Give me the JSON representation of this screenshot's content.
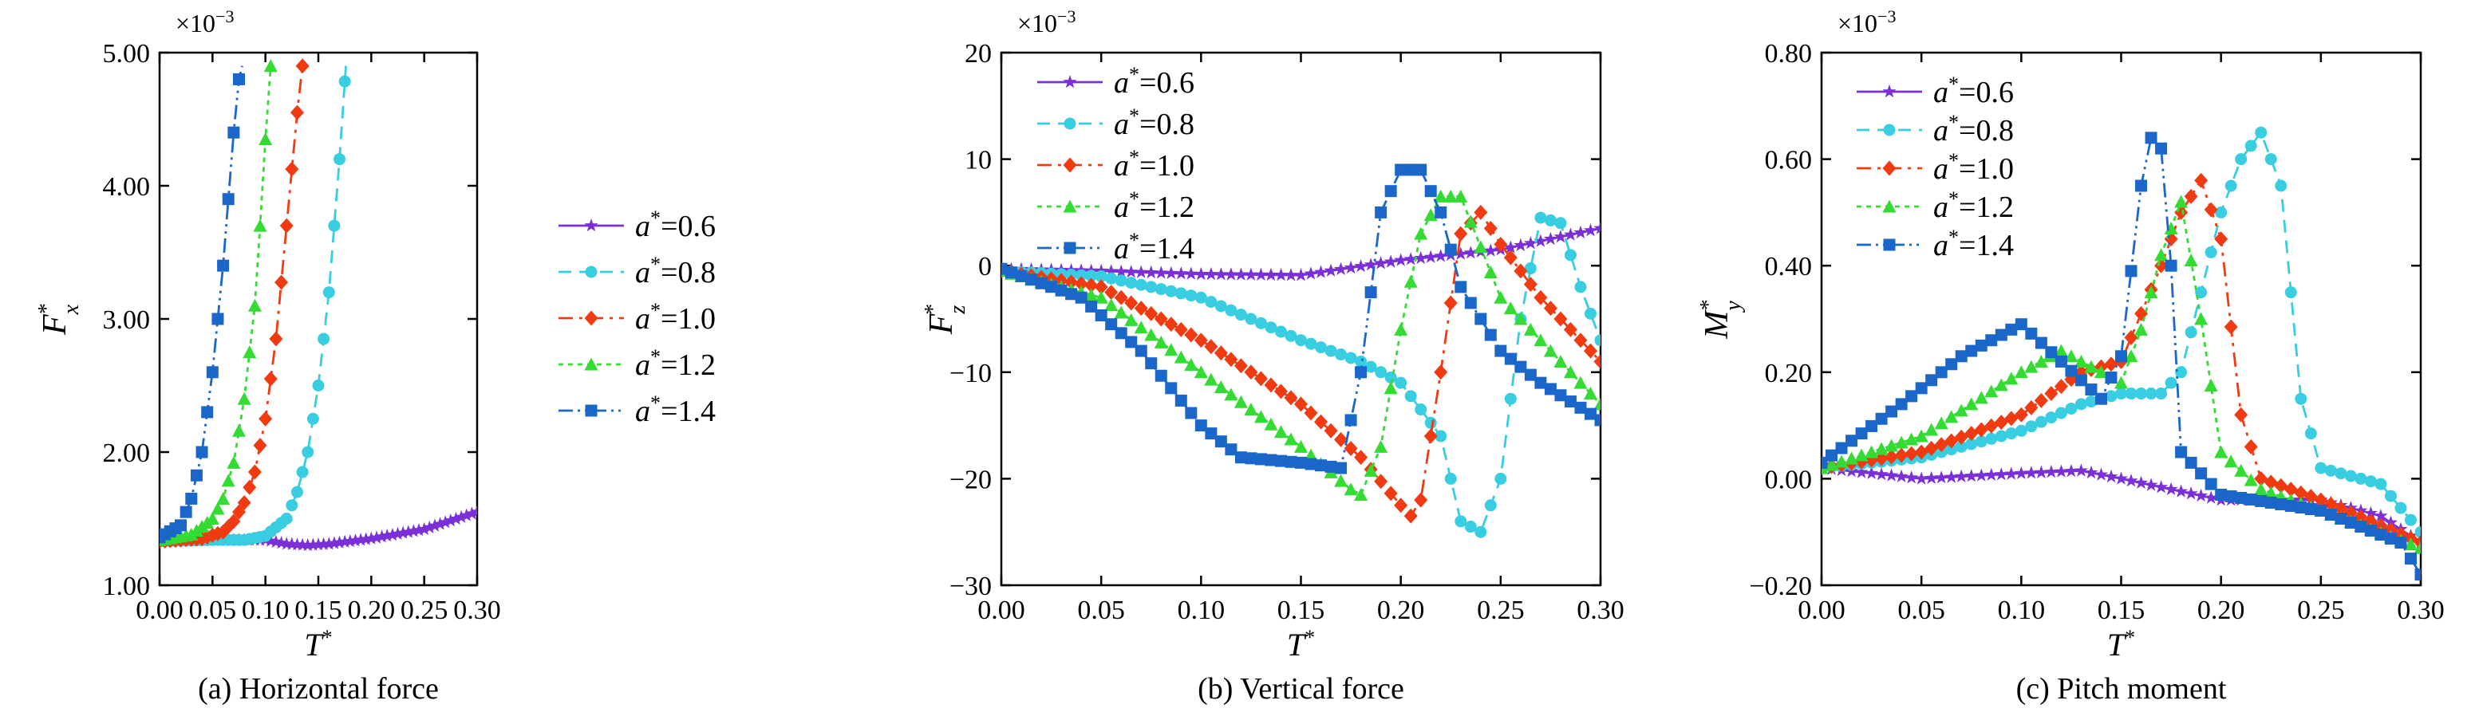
{
  "figure": {
    "subtitle_prefix": "×10",
    "subtitle_exponent": "−3",
    "legend_prefix": "a",
    "xlabel_main": "T",
    "xlabel_sup": "*"
  },
  "colors": {
    "a06": "#7B2FD6",
    "a08": "#38CDE0",
    "a10": "#F03B12",
    "a12": "#33DB33",
    "a14": "#1A66C9"
  },
  "chart_data": [
    {
      "type": "line",
      "caption": "(a) Horizontal force",
      "ylabel_main": "F",
      "ylabel_sub": "x",
      "ylabel_sup": "*",
      "multiplier": "×10−3",
      "xlim": [
        0,
        0.3
      ],
      "ylim": [
        1.0,
        5.0
      ],
      "xticks": [
        "0.00",
        "0.05",
        "0.10",
        "0.15",
        "0.20",
        "0.25",
        "0.30"
      ],
      "yticks": [
        "1.00",
        "2.00",
        "3.00",
        "4.00",
        "5.00"
      ],
      "legend_position": "center-right",
      "series": [
        {
          "name": "0.6",
          "marker": "star",
          "color_key": "a06",
          "x": [
            0.0,
            0.05,
            0.1,
            0.12,
            0.14,
            0.16,
            0.2,
            0.25,
            0.3
          ],
          "y": [
            1.33,
            1.34,
            1.34,
            1.31,
            1.3,
            1.31,
            1.35,
            1.42,
            1.55
          ]
        },
        {
          "name": "0.8",
          "marker": "circle",
          "color_key": "a08",
          "x": [
            0.0,
            0.05,
            0.08,
            0.1,
            0.12,
            0.13,
            0.14,
            0.15,
            0.16,
            0.17,
            0.176
          ],
          "y": [
            1.33,
            1.34,
            1.34,
            1.37,
            1.5,
            1.7,
            2.0,
            2.5,
            3.2,
            4.2,
            4.9
          ]
        },
        {
          "name": "1.0",
          "marker": "diamond",
          "color_key": "a10",
          "x": [
            0.0,
            0.04,
            0.06,
            0.07,
            0.08,
            0.09,
            0.1,
            0.11,
            0.12,
            0.13,
            0.135
          ],
          "y": [
            1.33,
            1.35,
            1.4,
            1.48,
            1.62,
            1.85,
            2.25,
            2.85,
            3.7,
            4.55,
            4.9
          ]
        },
        {
          "name": "1.2",
          "marker": "triangle",
          "color_key": "a12",
          "x": [
            0.0,
            0.03,
            0.05,
            0.06,
            0.07,
            0.08,
            0.09,
            0.095,
            0.1,
            0.105
          ],
          "y": [
            1.34,
            1.38,
            1.5,
            1.65,
            1.92,
            2.4,
            3.1,
            3.7,
            4.35,
            4.9
          ]
        },
        {
          "name": "1.4",
          "marker": "square",
          "color_key": "a14",
          "x": [
            0.0,
            0.02,
            0.03,
            0.04,
            0.05,
            0.06,
            0.065,
            0.07,
            0.075,
            0.078
          ],
          "y": [
            1.36,
            1.45,
            1.65,
            2.0,
            2.6,
            3.4,
            3.9,
            4.4,
            4.8,
            4.9
          ]
        }
      ]
    },
    {
      "type": "line",
      "caption": "(b) Vertical force",
      "ylabel_main": "F",
      "ylabel_sub": "z",
      "ylabel_sup": "*",
      "multiplier": "×10−3",
      "xlim": [
        0,
        0.3
      ],
      "ylim": [
        -30,
        20
      ],
      "xticks": [
        "0.00",
        "0.05",
        "0.10",
        "0.15",
        "0.20",
        "0.25",
        "0.30"
      ],
      "yticks": [
        "−30",
        "−20",
        "−10",
        "0",
        "10",
        "20"
      ],
      "legend_position": "top-left",
      "series": [
        {
          "name": "0.6",
          "marker": "star",
          "color_key": "a06",
          "x": [
            0.0,
            0.05,
            0.1,
            0.15,
            0.2,
            0.25,
            0.3
          ],
          "y": [
            -0.3,
            -0.5,
            -0.8,
            -0.9,
            0.5,
            1.5,
            3.5
          ]
        },
        {
          "name": "0.8",
          "marker": "circle",
          "color_key": "a08",
          "x": [
            0.0,
            0.05,
            0.1,
            0.15,
            0.18,
            0.2,
            0.22,
            0.23,
            0.24,
            0.25,
            0.26,
            0.27,
            0.28,
            0.29,
            0.3
          ],
          "y": [
            -0.5,
            -1.0,
            -3.0,
            -7.0,
            -9.0,
            -11.0,
            -16.0,
            -24.0,
            -25.0,
            -20.0,
            -5.0,
            4.5,
            4.0,
            -2.0,
            -7.0
          ]
        },
        {
          "name": "1.0",
          "marker": "diamond",
          "color_key": "a10",
          "x": [
            0.0,
            0.05,
            0.1,
            0.15,
            0.18,
            0.2,
            0.205,
            0.21,
            0.22,
            0.23,
            0.24,
            0.25,
            0.27,
            0.3
          ],
          "y": [
            -0.5,
            -2.0,
            -7.0,
            -13.0,
            -18.0,
            -22.5,
            -23.5,
            -22.0,
            -10.0,
            3.0,
            5.0,
            2.0,
            -3.0,
            -9.0
          ]
        },
        {
          "name": "1.2",
          "marker": "triangle",
          "color_key": "a12",
          "x": [
            0.0,
            0.05,
            0.1,
            0.15,
            0.175,
            0.18,
            0.19,
            0.2,
            0.21,
            0.22,
            0.23,
            0.25,
            0.27,
            0.3
          ],
          "y": [
            -0.5,
            -3.0,
            -10.0,
            -17.0,
            -21.0,
            -21.5,
            -17.0,
            -6.0,
            3.0,
            6.5,
            6.5,
            -3.0,
            -7.0,
            -13.0
          ]
        },
        {
          "name": "1.4",
          "marker": "square",
          "color_key": "a14",
          "x": [
            0.0,
            0.04,
            0.07,
            0.1,
            0.12,
            0.15,
            0.17,
            0.18,
            0.19,
            0.2,
            0.21,
            0.22,
            0.23,
            0.25,
            0.27,
            0.3
          ],
          "y": [
            -0.3,
            -3.0,
            -8.0,
            -15.0,
            -18.0,
            -18.5,
            -19.0,
            -10.0,
            5.0,
            9.0,
            9.0,
            5.0,
            -2.0,
            -8.0,
            -11.0,
            -14.5
          ]
        }
      ]
    },
    {
      "type": "line",
      "caption": "(c) Pitch moment",
      "ylabel_main": "M",
      "ylabel_sub": "y",
      "ylabel_sup": "*",
      "multiplier": "×10−3",
      "xlim": [
        0,
        0.3
      ],
      "ylim": [
        -0.2,
        0.8
      ],
      "xticks": [
        "0.00",
        "0.05",
        "0.10",
        "0.15",
        "0.20",
        "0.25",
        "0.30"
      ],
      "yticks": [
        "−0.20",
        "0.00",
        "0.20",
        "0.40",
        "0.60",
        "0.80"
      ],
      "legend_position": "top-left",
      "series": [
        {
          "name": "0.6",
          "marker": "star",
          "color_key": "a06",
          "x": [
            0.0,
            0.05,
            0.1,
            0.13,
            0.15,
            0.2,
            0.25,
            0.28,
            0.3
          ],
          "y": [
            0.02,
            0.0,
            0.01,
            0.015,
            0.0,
            -0.04,
            -0.04,
            -0.07,
            -0.12
          ]
        },
        {
          "name": "0.8",
          "marker": "circle",
          "color_key": "a08",
          "x": [
            0.0,
            0.05,
            0.1,
            0.13,
            0.15,
            0.17,
            0.18,
            0.2,
            0.21,
            0.22,
            0.23,
            0.24,
            0.25,
            0.28,
            0.3
          ],
          "y": [
            0.02,
            0.04,
            0.09,
            0.14,
            0.16,
            0.16,
            0.2,
            0.5,
            0.6,
            0.65,
            0.55,
            0.15,
            0.02,
            -0.01,
            -0.1
          ]
        },
        {
          "name": "1.0",
          "marker": "diamond",
          "color_key": "a10",
          "x": [
            0.0,
            0.05,
            0.1,
            0.13,
            0.15,
            0.17,
            0.18,
            0.19,
            0.2,
            0.21,
            0.22,
            0.25,
            0.3
          ],
          "y": [
            0.02,
            0.05,
            0.12,
            0.2,
            0.22,
            0.4,
            0.5,
            0.56,
            0.45,
            0.12,
            0.0,
            -0.04,
            -0.12
          ]
        },
        {
          "name": "1.2",
          "marker": "triangle",
          "color_key": "a12",
          "x": [
            0.0,
            0.05,
            0.1,
            0.12,
            0.15,
            0.16,
            0.17,
            0.18,
            0.19,
            0.2,
            0.22,
            0.25,
            0.3
          ],
          "y": [
            0.02,
            0.08,
            0.2,
            0.24,
            0.18,
            0.28,
            0.42,
            0.52,
            0.3,
            0.05,
            -0.02,
            -0.06,
            -0.13
          ]
        },
        {
          "name": "1.4",
          "marker": "square",
          "color_key": "a14",
          "x": [
            0.0,
            0.04,
            0.07,
            0.1,
            0.12,
            0.14,
            0.15,
            0.16,
            0.165,
            0.17,
            0.175,
            0.18,
            0.2,
            0.25,
            0.29,
            0.3
          ],
          "y": [
            0.03,
            0.14,
            0.23,
            0.29,
            0.22,
            0.15,
            0.23,
            0.55,
            0.64,
            0.62,
            0.4,
            0.05,
            -0.03,
            -0.06,
            -0.12,
            -0.18
          ]
        }
      ]
    }
  ]
}
